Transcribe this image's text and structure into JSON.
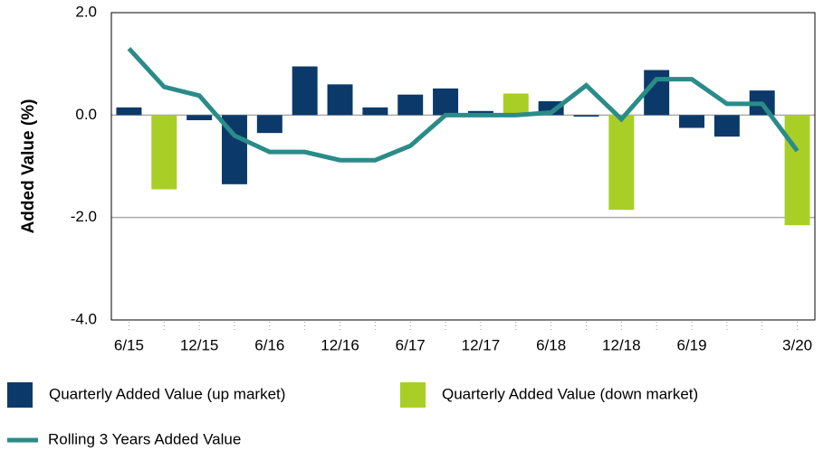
{
  "chart_data": {
    "type": "bar_line",
    "y_label": "Added Value (%)",
    "categories": [
      "6/15",
      null,
      "12/15",
      null,
      "6/16",
      null,
      "12/16",
      null,
      "6/17",
      null,
      "12/17",
      null,
      "6/18",
      null,
      "12/18",
      null,
      "6/19",
      null,
      null,
      "3/20"
    ],
    "series": [
      {
        "name": "Quarterly Added Value (up market)",
        "color": "#0b3a6a",
        "kind": "bar",
        "values": [
          0.15,
          null,
          -0.1,
          -1.35,
          -0.35,
          0.95,
          0.6,
          0.15,
          0.4,
          0.52,
          0.08,
          null,
          0.27,
          -0.03,
          null,
          0.88,
          -0.25,
          -0.42,
          0.48,
          null
        ]
      },
      {
        "name": "Quarterly Added Value (down market)",
        "color": "#a9cf26",
        "kind": "bar",
        "values": [
          null,
          -1.45,
          null,
          null,
          null,
          null,
          null,
          null,
          null,
          null,
          null,
          0.42,
          null,
          null,
          -1.85,
          null,
          null,
          null,
          null,
          -2.15
        ]
      },
      {
        "name": "Rolling 3 Years Added Value",
        "color": "#2a8c89",
        "kind": "line",
        "values": [
          1.3,
          0.55,
          0.38,
          -0.4,
          -0.72,
          -0.72,
          -0.88,
          -0.88,
          -0.6,
          0.0,
          0.0,
          0.0,
          0.05,
          0.58,
          -0.08,
          0.7,
          0.7,
          0.22,
          0.22,
          -0.7
        ]
      }
    ],
    "ylim": [
      -4,
      2
    ],
    "yticks": [
      {
        "value": 2,
        "label": "2.0"
      },
      {
        "value": 0,
        "label": "0.0"
      },
      {
        "value": -2,
        "label": "-2.0"
      },
      {
        "value": -4,
        "label": "-4.0"
      }
    ],
    "grid": true
  }
}
